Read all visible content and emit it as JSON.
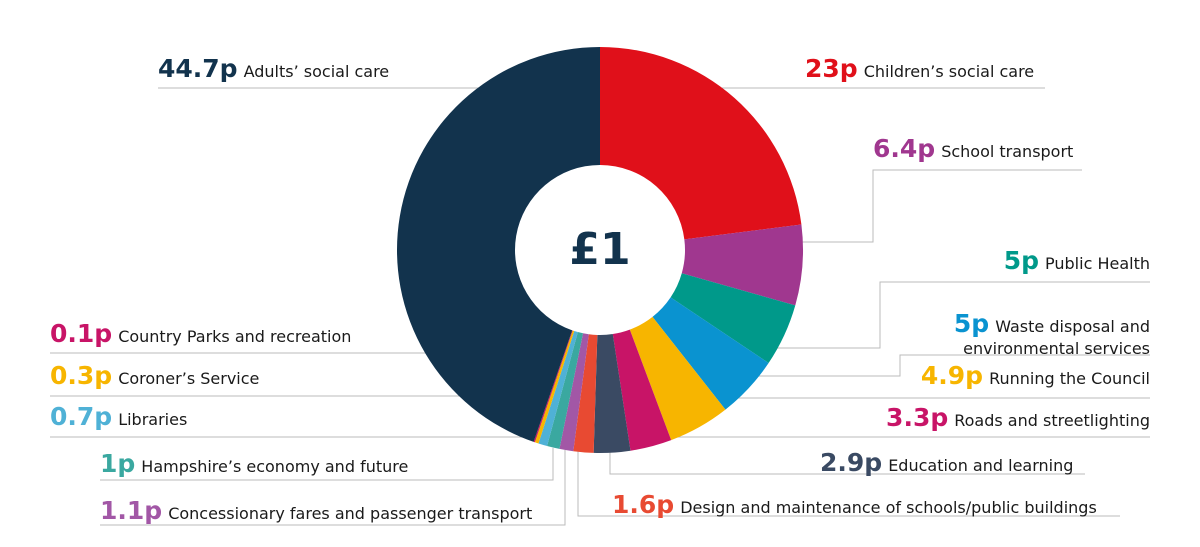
{
  "chart_data": {
    "type": "donut",
    "center_label": "£1",
    "categories": [
      "Children’s social care",
      "School transport",
      "Public Health",
      "Waste disposal and environmental services",
      "Running the Council",
      "Roads and streetlighting",
      "Education and learning",
      "Design and maintenance of schools/public buildings",
      "Concessionary fares and passenger transport",
      "Hampshire’s economy and future",
      "Libraries",
      "Coroner’s Service",
      "Country Parks and recreation",
      "Adults’ social care"
    ],
    "values": [
      23,
      6.4,
      5,
      5,
      4.9,
      3.3,
      2.9,
      1.6,
      1.1,
      1,
      0.7,
      0.3,
      0.1,
      44.7
    ],
    "value_labels": [
      "23p",
      "6.4p",
      "5p",
      "5p",
      "4.9p",
      "3.3p",
      "2.9p",
      "1.6p",
      "1.1p",
      "1p",
      "0.7p",
      "0.3p",
      "0.1p",
      "44.7p"
    ],
    "colors": [
      "#e0101a",
      "#a0378f",
      "#00998a",
      "#0a93d0",
      "#f7b500",
      "#c81467",
      "#3a4a63",
      "#e84a32",
      "#a257a6",
      "#3aa8a0",
      "#4fb1d6",
      "#f7b500",
      "#c81467",
      "#12334d"
    ]
  }
}
